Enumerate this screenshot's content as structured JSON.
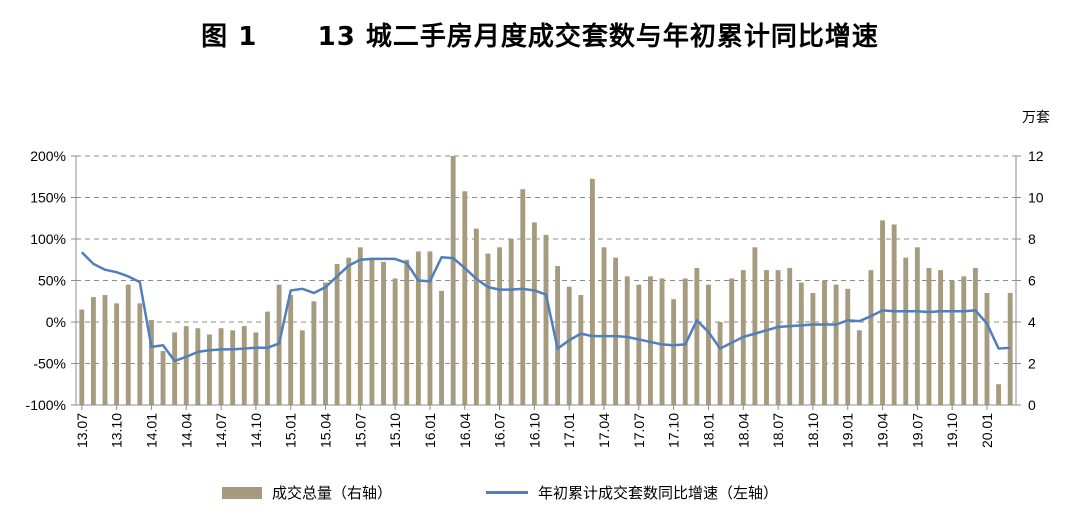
{
  "title": "图 1      13 城二手房月度成交套数与年初累计同比增速",
  "colors": {
    "bar": "#a69b7f",
    "line": "#4f7fbd",
    "grid": "#8c8c8c"
  },
  "chart_data": {
    "type": "bar+line",
    "unit_right": "万套",
    "x": [
      "13.07",
      "13.08",
      "13.09",
      "13.10",
      "13.11",
      "13.12",
      "14.01",
      "14.02",
      "14.03",
      "14.04",
      "14.05",
      "14.06",
      "14.07",
      "14.08",
      "14.09",
      "14.10",
      "14.11",
      "14.12",
      "15.01",
      "15.02",
      "15.03",
      "15.04",
      "15.05",
      "15.06",
      "15.07",
      "15.08",
      "15.09",
      "15.10",
      "15.11",
      "15.12",
      "16.01",
      "16.02",
      "16.03",
      "16.04",
      "16.05",
      "16.06",
      "16.07",
      "16.08",
      "16.09",
      "16.10",
      "16.11",
      "16.12",
      "17.01",
      "17.02",
      "17.03",
      "17.04",
      "17.05",
      "17.06",
      "17.07",
      "17.08",
      "17.09",
      "17.10",
      "17.11",
      "17.12",
      "18.01",
      "18.02",
      "18.03",
      "18.04",
      "18.05",
      "18.06",
      "18.07",
      "18.08",
      "18.09",
      "18.10",
      "18.11",
      "18.12",
      "19.01",
      "19.02",
      "19.03",
      "19.04",
      "19.05",
      "19.06",
      "19.07",
      "19.08",
      "19.09",
      "19.10",
      "19.11",
      "19.12",
      "20.01",
      "20.02",
      "20.03"
    ],
    "x_tick_labels": [
      "13.07",
      "13.10",
      "14.01",
      "14.04",
      "14.07",
      "14.10",
      "15.01",
      "15.04",
      "15.07",
      "15.10",
      "16.01",
      "16.04",
      "16.07",
      "16.10",
      "17.01",
      "17.04",
      "17.07",
      "17.10",
      "18.01",
      "18.04",
      "18.07",
      "18.10",
      "19.01",
      "19.04",
      "19.07",
      "19.10",
      "20.01"
    ],
    "series": [
      {
        "name": "成交总量（右轴）",
        "type": "bar",
        "axis": "right",
        "values": [
          4.6,
          5.2,
          5.3,
          4.9,
          5.8,
          4.9,
          4.1,
          2.6,
          3.5,
          3.8,
          3.7,
          3.4,
          3.7,
          3.6,
          3.8,
          3.5,
          4.5,
          5.8,
          5.3,
          3.6,
          5.0,
          5.9,
          6.8,
          7.1,
          7.6,
          7.1,
          6.9,
          6.1,
          7.0,
          7.4,
          7.4,
          5.5,
          12.0,
          10.3,
          8.5,
          7.3,
          7.6,
          8.0,
          10.4,
          8.8,
          8.2,
          6.7,
          5.7,
          5.3,
          10.9,
          7.6,
          7.1,
          6.2,
          5.8,
          6.2,
          6.1,
          5.1,
          6.1,
          6.6,
          5.8,
          4.0,
          6.1,
          6.5,
          7.6,
          6.5,
          6.5,
          6.6,
          5.9,
          5.4,
          6.0,
          5.8,
          5.6,
          3.6,
          6.5,
          8.9,
          8.7,
          7.1,
          7.6,
          6.6,
          6.5,
          6.0,
          6.2,
          6.6,
          5.4,
          1.0,
          5.4
        ]
      },
      {
        "name": "年初累计成交套数同比增速（左轴）",
        "type": "line",
        "axis": "left",
        "values": [
          84,
          70,
          63,
          60,
          55,
          48,
          -30,
          -28,
          -47,
          -42,
          -36,
          -34,
          -33,
          -33,
          -32,
          -31,
          -31,
          -26,
          38,
          40,
          35,
          42,
          55,
          68,
          75,
          76,
          76,
          76,
          71,
          50,
          49,
          78,
          77,
          65,
          52,
          42,
          39,
          39,
          40,
          38,
          33,
          -32,
          -22,
          -14,
          -17,
          -17,
          -17,
          -18,
          -21,
          -24,
          -27,
          -28,
          -27,
          2,
          -12,
          -32,
          -25,
          -18,
          -14,
          -10,
          -6,
          -5,
          -4,
          -3,
          -3,
          -3,
          2,
          1,
          7,
          14,
          13,
          13,
          13,
          12,
          13,
          13,
          13,
          14,
          -2,
          -32,
          -31
        ]
      }
    ],
    "y_left": {
      "ticks": [
        "200%",
        "150%",
        "100%",
        "50%",
        "0%",
        "-50%",
        "-100%"
      ],
      "min": -100,
      "max": 200,
      "step": 50
    },
    "y_right": {
      "ticks": [
        "12",
        "10",
        "8",
        "6",
        "4",
        "2",
        "0"
      ],
      "min": 0,
      "max": 12,
      "step": 2
    },
    "grid": "horizontal-dashed",
    "legend_position": "bottom"
  }
}
